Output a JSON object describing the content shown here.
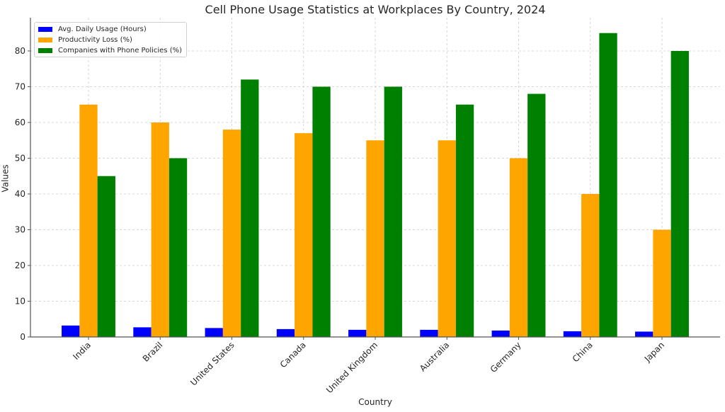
{
  "chart_data": {
    "type": "bar",
    "title": "Cell Phone Usage Statistics at Workplaces By Country, 2024",
    "xlabel": "Country",
    "ylabel": "Values",
    "categories": [
      "India",
      "Brazil",
      "United States",
      "Canada",
      "United Kingdom",
      "Australia",
      "Germany",
      "China",
      "Japan"
    ],
    "series": [
      {
        "name": "Avg. Daily Usage (Hours)",
        "color": "#0000ff",
        "values": [
          3.2,
          2.7,
          2.5,
          2.2,
          2.0,
          2.0,
          1.8,
          1.6,
          1.5
        ]
      },
      {
        "name": "Productivity Loss (%)",
        "color": "#ffa500",
        "values": [
          65,
          60,
          58,
          57,
          55,
          55,
          50,
          40,
          30
        ]
      },
      {
        "name": "Companies with Phone Policies (%)",
        "color": "#008000",
        "values": [
          45,
          50,
          72,
          70,
          70,
          65,
          68,
          85,
          80
        ]
      }
    ],
    "yticks": [
      0,
      10,
      20,
      30,
      40,
      50,
      60,
      70,
      80
    ],
    "ylim": [
      0,
      89.3
    ],
    "grid": true,
    "legend_position": "upper left"
  }
}
